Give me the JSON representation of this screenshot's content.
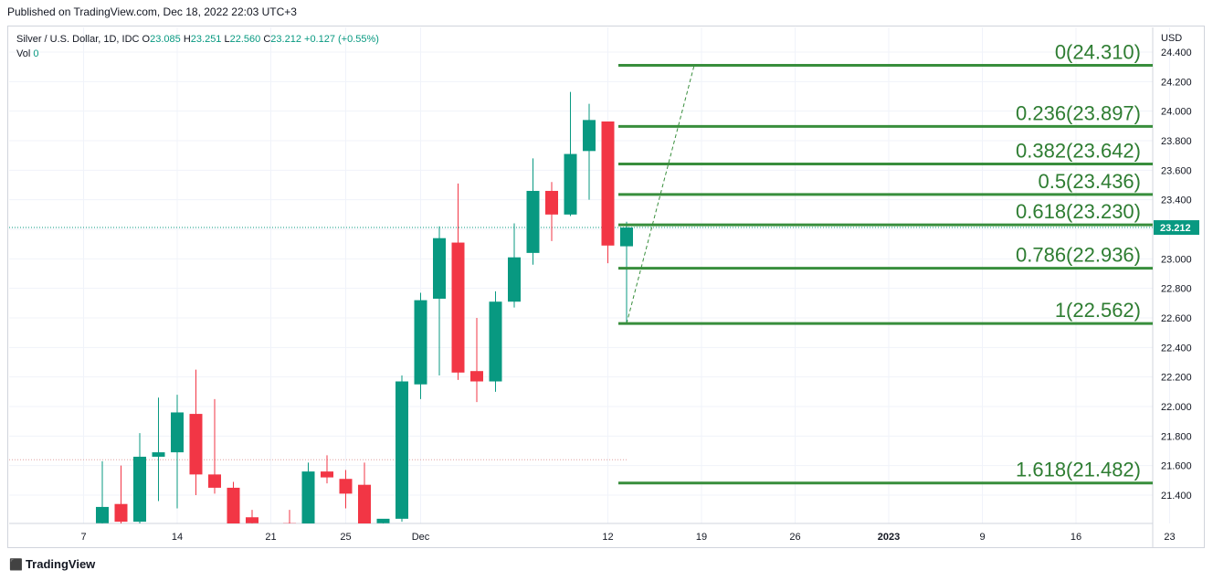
{
  "header": {
    "published": "Published on TradingView.com, Dec 18, 2022 22:03 UTC+3"
  },
  "legend": {
    "symbol": "Silver / U.S. Dollar, 1D, IDC",
    "o_label": "O",
    "o_value": "23.085",
    "h_label": "H",
    "h_value": "23.251",
    "l_label": "L",
    "l_value": "22.560",
    "c_label": "C",
    "c_value": "23.212",
    "change": "+0.127 (+0.55%)",
    "vol_label": "Vol",
    "vol_value": "0"
  },
  "footer": {
    "brand": "TradingView"
  },
  "colors": {
    "up": "#089981",
    "down": "#f23645",
    "fib": "#388e3c",
    "fib_text": "#2e7d32"
  },
  "chart_data": {
    "type": "candlestick",
    "currency": "USD",
    "last_price": "23.212",
    "ylim": [
      21.2,
      24.48
    ],
    "y_ticks": [
      "21.400",
      "21.600",
      "21.800",
      "22.000",
      "22.200",
      "22.400",
      "22.600",
      "22.800",
      "23.000",
      "23.200",
      "23.400",
      "23.600",
      "23.800",
      "24.000",
      "24.200",
      "24.400"
    ],
    "x_ticks": [
      {
        "label": "7",
        "slot": 6
      },
      {
        "label": "14",
        "slot": 11
      },
      {
        "label": "21",
        "slot": 16
      },
      {
        "label": "25",
        "slot": 20
      },
      {
        "label": "Dec",
        "slot": 24
      },
      {
        "label": "12",
        "slot": 34
      },
      {
        "label": "19",
        "slot": 39
      },
      {
        "label": "26",
        "slot": 44
      },
      {
        "label": "2023",
        "slot": 49
      },
      {
        "label": "9",
        "slot": 54
      },
      {
        "label": "16",
        "slot": 59
      },
      {
        "label": "23",
        "slot": 64
      }
    ],
    "candles": [
      {
        "slot": 7,
        "o": 21.21,
        "h": 21.63,
        "l": 21.2,
        "c": 21.32
      },
      {
        "slot": 8,
        "o": 21.34,
        "h": 21.6,
        "l": 21.2,
        "c": 21.22
      },
      {
        "slot": 9,
        "o": 21.22,
        "h": 21.82,
        "l": 21.2,
        "c": 21.66
      },
      {
        "slot": 10,
        "o": 21.66,
        "h": 22.06,
        "l": 21.36,
        "c": 21.69
      },
      {
        "slot": 11,
        "o": 21.69,
        "h": 22.08,
        "l": 21.31,
        "c": 21.96
      },
      {
        "slot": 12,
        "o": 21.95,
        "h": 22.25,
        "l": 21.4,
        "c": 21.54
      },
      {
        "slot": 13,
        "o": 21.54,
        "h": 22.05,
        "l": 21.41,
        "c": 21.45
      },
      {
        "slot": 14,
        "o": 21.45,
        "h": 21.49,
        "l": 21.2,
        "c": 21.2
      },
      {
        "slot": 15,
        "o": 21.25,
        "h": 21.3,
        "l": 21.2,
        "c": 21.21
      },
      {
        "slot": 17,
        "o": 21.21,
        "h": 21.3,
        "l": 21.2,
        "c": 21.2
      },
      {
        "slot": 18,
        "o": 21.2,
        "h": 21.62,
        "l": 21.2,
        "c": 21.56
      },
      {
        "slot": 19,
        "o": 21.56,
        "h": 21.67,
        "l": 21.48,
        "c": 21.52
      },
      {
        "slot": 20,
        "o": 21.51,
        "h": 21.57,
        "l": 21.31,
        "c": 21.41
      },
      {
        "slot": 21,
        "o": 21.47,
        "h": 21.62,
        "l": 21.2,
        "c": 21.2
      },
      {
        "slot": 22,
        "o": 21.21,
        "h": 21.22,
        "l": 21.2,
        "c": 21.24
      },
      {
        "slot": 23,
        "o": 21.24,
        "h": 22.21,
        "l": 21.22,
        "c": 22.17
      },
      {
        "slot": 24,
        "o": 22.15,
        "h": 22.77,
        "l": 22.05,
        "c": 22.72
      },
      {
        "slot": 25,
        "o": 22.73,
        "h": 23.22,
        "l": 22.21,
        "c": 23.14
      },
      {
        "slot": 26,
        "o": 23.11,
        "h": 23.51,
        "l": 22.18,
        "c": 22.23
      },
      {
        "slot": 27,
        "o": 22.24,
        "h": 22.6,
        "l": 22.03,
        "c": 22.17
      },
      {
        "slot": 28,
        "o": 22.17,
        "h": 22.78,
        "l": 22.1,
        "c": 22.71
      },
      {
        "slot": 29,
        "o": 22.71,
        "h": 23.24,
        "l": 22.67,
        "c": 23.01
      },
      {
        "slot": 30,
        "o": 23.04,
        "h": 23.68,
        "l": 22.96,
        "c": 23.46
      },
      {
        "slot": 31,
        "o": 23.46,
        "h": 23.52,
        "l": 23.12,
        "c": 23.3
      },
      {
        "slot": 32,
        "o": 23.3,
        "h": 24.13,
        "l": 23.29,
        "c": 23.71
      },
      {
        "slot": 33,
        "o": 23.73,
        "h": 24.05,
        "l": 23.4,
        "c": 23.94
      },
      {
        "slot": 34,
        "o": 23.93,
        "h": 23.93,
        "l": 22.97,
        "c": 23.09
      },
      {
        "slot": 35,
        "o": 23.085,
        "h": 23.251,
        "l": 22.56,
        "c": 23.212
      }
    ],
    "fib_levels": [
      {
        "label": "0(24.310)",
        "value": 24.31
      },
      {
        "label": "0.236(23.897)",
        "value": 23.897
      },
      {
        "label": "0.382(23.642)",
        "value": 23.642
      },
      {
        "label": "0.5(23.436)",
        "value": 23.436
      },
      {
        "label": "0.618(23.230)",
        "value": 23.23
      },
      {
        "label": "0.786(22.936)",
        "value": 22.936
      },
      {
        "label": "1(22.562)",
        "value": 22.562
      },
      {
        "label": "1.618(21.482)",
        "value": 21.482
      }
    ],
    "fib_trend": {
      "from": {
        "slot": 35,
        "value": 22.562
      },
      "to": {
        "slot": 39,
        "value": 24.31
      }
    },
    "ref_line_value": 21.64
  }
}
